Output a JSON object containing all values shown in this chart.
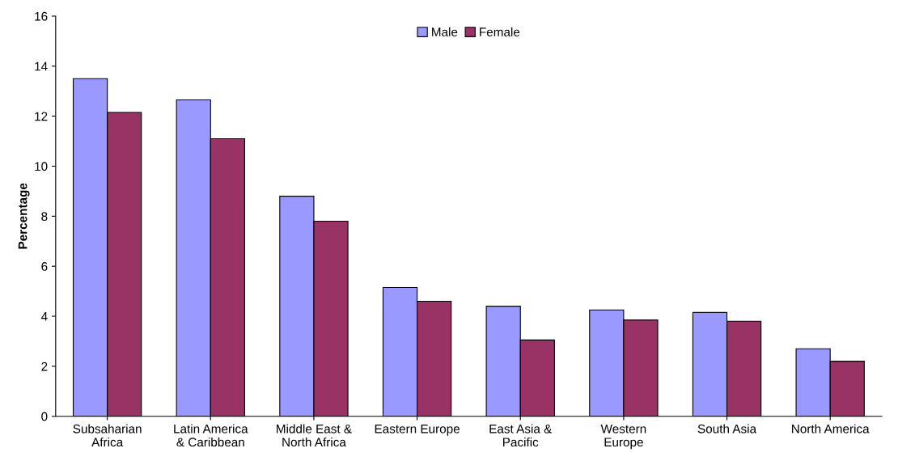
{
  "chart_data": {
    "type": "bar",
    "ylabel": "Percentage",
    "categories": [
      "Subsaharian\nAfrica",
      "Latin America\n& Caribbean",
      "Middle East &\nNorth Africa",
      "Eastern Europe",
      "East Asia &\nPacific",
      "Western\nEurope",
      "South Asia",
      "North America"
    ],
    "series": [
      {
        "name": "Male",
        "color": "#9999ff",
        "values": [
          13.5,
          12.65,
          8.8,
          5.15,
          4.4,
          4.25,
          4.15,
          2.7
        ]
      },
      {
        "name": "Female",
        "color": "#993366",
        "values": [
          12.15,
          11.1,
          7.8,
          4.6,
          3.05,
          3.85,
          3.8,
          2.2
        ]
      }
    ],
    "ylim": [
      0,
      16
    ],
    "yticks": [
      0,
      2,
      4,
      6,
      8,
      10,
      12,
      14,
      16
    ],
    "grid": false,
    "legend": "top"
  }
}
